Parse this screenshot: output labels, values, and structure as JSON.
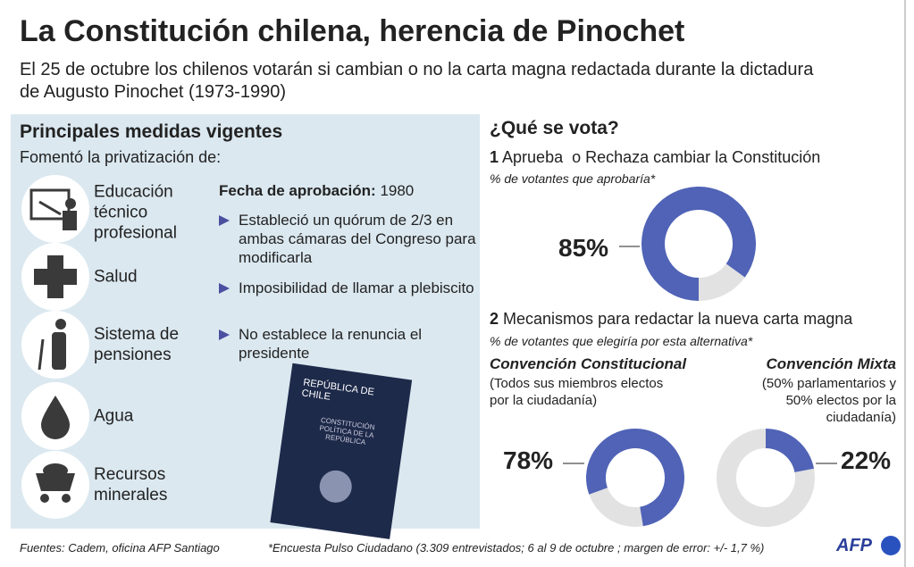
{
  "header": {
    "title": "La Constitución chilena, herencia de Pinochet",
    "subtitle": "El 25 de octubre los chilenos votarán si cambian o no la carta magna redactada durante la dictadura de Augusto Pinochet (1973-1990)"
  },
  "measures": {
    "heading": "Principales medidas vigentes",
    "intro": "Fomentó la privatización de:",
    "items": [
      "Educación técnico profesional",
      "Salud",
      "Sistema de pensiones",
      "Agua",
      "Recursos minerales"
    ],
    "date_label": "Fecha de aprobación:",
    "date": "1980",
    "bullets": [
      "Estableció un quórum de 2/3 en ambas cámaras del Congreso para modificarla",
      "Imposibilidad de llamar a plebiscito",
      "No establece la renuncia el presidente"
    ]
  },
  "passport": {
    "country": "REPÚBLICA DE CHILE",
    "text": "CONSTITUCIÓN POLÍTICA DE LA REPÚBLICA"
  },
  "vote": {
    "heading": "¿Qué se vota?",
    "q1": {
      "number": "1",
      "text": "Aprueba  o Rechaza cambiar la Constitución",
      "note": "% de votantes que aprobaría*",
      "value": 85,
      "value_label": "85%"
    },
    "q2": {
      "number": "2",
      "text": "Mecanismos para redactar la nueva carta magna",
      "note": "% de votantes que elegiría por esta alternativa*",
      "options": [
        {
          "name": "Convención Constitucional",
          "desc": "(Todos sus miembros electos por la ciudadanía)",
          "value": 78,
          "value_label": "78%"
        },
        {
          "name": "Convención Mixta",
          "desc": "(50% parlamentarios y 50% electos por la ciudadanía)",
          "value": 22,
          "value_label": "22%"
        }
      ]
    }
  },
  "footer": {
    "sources": "Fuentes: Cadem, oficina AFP Santiago",
    "note": "*Encuesta Pulso Ciudadano (3.309 entrevistados; 6 al 9 de octubre ; margen de error: +/- 1,7 %)",
    "logo": "AFP"
  }
}
